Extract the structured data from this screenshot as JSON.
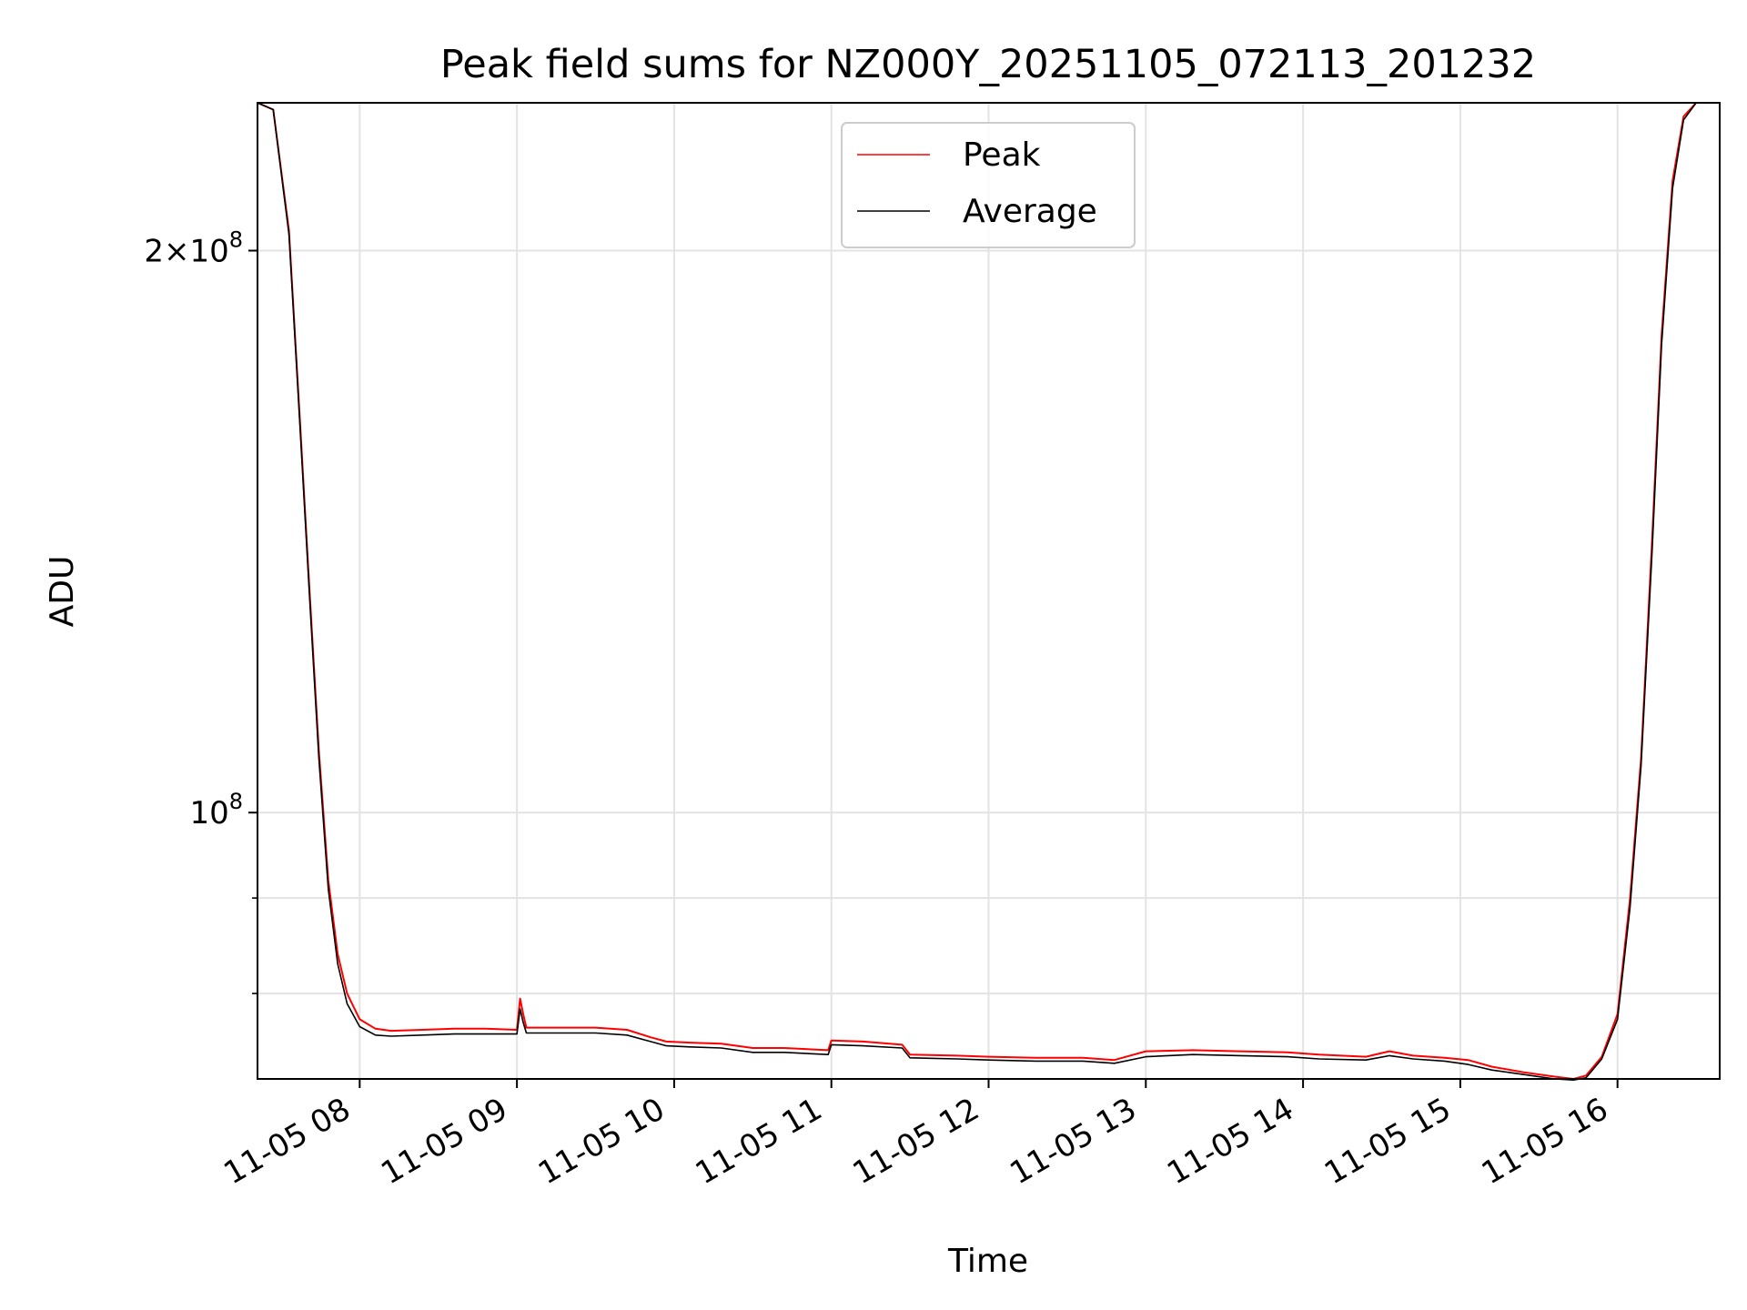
{
  "chart_data": {
    "type": "line",
    "title": "Peak field sums for NZ000Y_20251105_072113_201232",
    "xlabel": "Time",
    "ylabel": "ADU",
    "yscale": "log",
    "ylim": [
      72000000,
      240000000
    ],
    "x_unit": "hours (2025-11-05)",
    "xlim": [
      7.35,
      16.65
    ],
    "x_ticks": [
      {
        "value": 8,
        "label": "11-05 08"
      },
      {
        "value": 9,
        "label": "11-05 09"
      },
      {
        "value": 10,
        "label": "11-05 10"
      },
      {
        "value": 11,
        "label": "11-05 11"
      },
      {
        "value": 12,
        "label": "11-05 12"
      },
      {
        "value": 13,
        "label": "11-05 13"
      },
      {
        "value": 14,
        "label": "11-05 14"
      },
      {
        "value": 15,
        "label": "11-05 15"
      },
      {
        "value": 16,
        "label": "11-05 16"
      }
    ],
    "y_major_ticks": [
      {
        "value": 100000000,
        "base": "10",
        "exp": "8",
        "mant": ""
      },
      {
        "value": 200000000,
        "base": "10",
        "exp": "8",
        "mant": "2×"
      }
    ],
    "y_minor_ticks": [
      90000000,
      80000000,
      70000000
    ],
    "legend": {
      "location": "upper center",
      "entries": [
        "Peak",
        "Average"
      ]
    },
    "series": [
      {
        "name": "Peak",
        "color": "#ff0000",
        "x": [
          7.35,
          7.45,
          7.55,
          7.62,
          7.68,
          7.74,
          7.8,
          7.86,
          7.92,
          8.0,
          8.1,
          8.2,
          8.4,
          8.6,
          8.8,
          9.0,
          9.02,
          9.04,
          9.06,
          9.1,
          9.3,
          9.5,
          9.7,
          9.85,
          9.95,
          10.1,
          10.3,
          10.5,
          10.7,
          10.98,
          11.0,
          11.2,
          11.45,
          11.5,
          11.8,
          12.0,
          12.3,
          12.6,
          12.8,
          13.0,
          13.3,
          13.6,
          13.9,
          14.1,
          14.4,
          14.55,
          14.7,
          14.9,
          15.05,
          15.2,
          15.4,
          15.6,
          15.72,
          15.8,
          15.9,
          16.0,
          16.08,
          16.15,
          16.22,
          16.28,
          16.35,
          16.42,
          16.5,
          16.58,
          16.65
        ],
        "y": [
          240000000,
          238000000,
          205000000,
          162000000,
          132000000,
          108000000,
          92000000,
          84000000,
          80000000,
          77500000,
          76600000,
          76400000,
          76500000,
          76600000,
          76600000,
          76500000,
          79500000,
          78000000,
          76700000,
          76700000,
          76700000,
          76700000,
          76500000,
          75800000,
          75400000,
          75300000,
          75200000,
          74800000,
          74800000,
          74600000,
          75500000,
          75400000,
          75100000,
          74200000,
          74100000,
          74000000,
          73900000,
          73900000,
          73700000,
          74500000,
          74600000,
          74500000,
          74400000,
          74200000,
          74000000,
          74500000,
          74100000,
          73900000,
          73700000,
          73100000,
          72600000,
          72200000,
          72000000,
          72300000,
          74000000,
          78000000,
          90000000,
          107000000,
          140000000,
          180000000,
          218000000,
          236000000,
          240000000,
          240000000,
          240000000
        ]
      },
      {
        "name": "Average",
        "color": "#000000",
        "x": [
          7.35,
          7.45,
          7.55,
          7.62,
          7.68,
          7.74,
          7.8,
          7.86,
          7.92,
          8.0,
          8.1,
          8.2,
          8.4,
          8.6,
          8.8,
          9.0,
          9.02,
          9.04,
          9.06,
          9.1,
          9.3,
          9.5,
          9.7,
          9.85,
          9.95,
          10.1,
          10.3,
          10.5,
          10.7,
          10.98,
          11.0,
          11.2,
          11.45,
          11.5,
          11.8,
          12.0,
          12.3,
          12.6,
          12.8,
          13.0,
          13.3,
          13.6,
          13.9,
          14.1,
          14.4,
          14.55,
          14.7,
          14.9,
          15.05,
          15.2,
          15.4,
          15.6,
          15.72,
          15.8,
          15.9,
          16.0,
          16.08,
          16.15,
          16.22,
          16.28,
          16.35,
          16.42,
          16.5,
          16.58,
          16.65
        ],
        "y": [
          240000000,
          238000000,
          204000000,
          161000000,
          131000000,
          107000000,
          91000000,
          83000000,
          79000000,
          76800000,
          76000000,
          75900000,
          76000000,
          76100000,
          76100000,
          76100000,
          78500000,
          77200000,
          76200000,
          76200000,
          76200000,
          76200000,
          76000000,
          75400000,
          75000000,
          74900000,
          74800000,
          74400000,
          74400000,
          74200000,
          75100000,
          75000000,
          74800000,
          73900000,
          73800000,
          73700000,
          73600000,
          73600000,
          73400000,
          74000000,
          74200000,
          74100000,
          74000000,
          73800000,
          73700000,
          74100000,
          73800000,
          73600000,
          73300000,
          72800000,
          72400000,
          72000000,
          71900000,
          72100000,
          73800000,
          77500000,
          89000000,
          106000000,
          138000000,
          178000000,
          216000000,
          235000000,
          240000000,
          240000000,
          240000000
        ]
      }
    ]
  }
}
